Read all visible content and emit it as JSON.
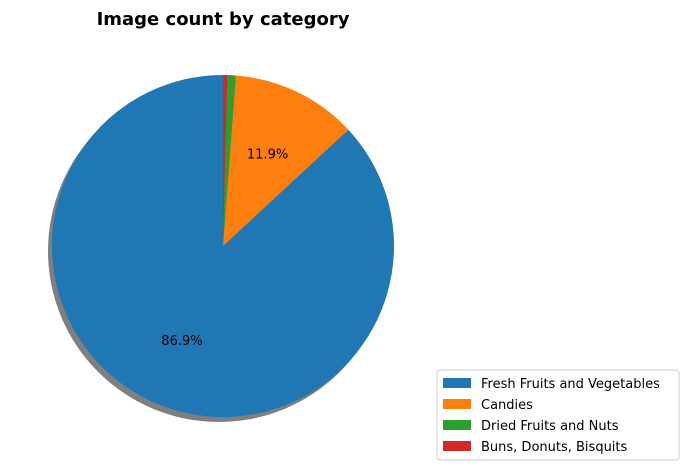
{
  "chart_data": {
    "type": "pie",
    "title": "Image count by category",
    "categories": [
      "Fresh Fruits and Vegetables",
      "Candies",
      "Dried Fruits and Nuts",
      "Buns, Donuts, Bisquits"
    ],
    "values": [
      86.9,
      11.9,
      0.8,
      0.4
    ],
    "pct_labels": [
      "86.9%",
      "11.9%",
      "",
      ""
    ],
    "colors": [
      "#1f77b4",
      "#ff7f0e",
      "#2ca02c",
      "#d62728"
    ],
    "start_angle_deg": 90,
    "direction": "counterclockwise",
    "shadow": true,
    "legend_position": "bottom-right"
  }
}
